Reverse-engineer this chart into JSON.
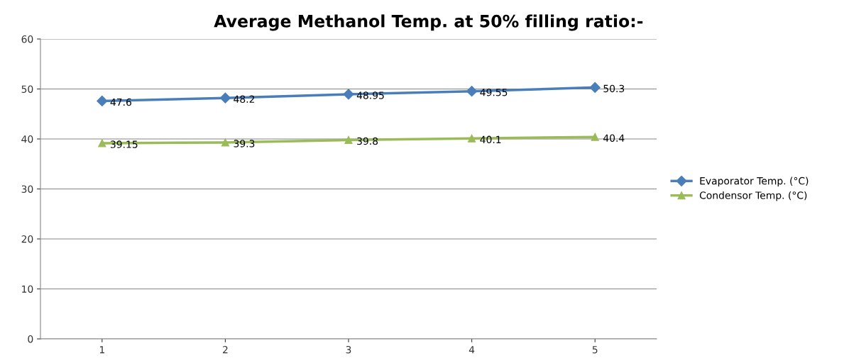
{
  "chart_data": {
    "type": "line",
    "title": "Average Methanol Temp. at 50% filling ratio:-",
    "categories": [
      "1",
      "2",
      "3",
      "4",
      "5"
    ],
    "series": [
      {
        "name": "Evaporator Temp. (°C)",
        "color": "#4a7ebb",
        "marker": "diamond",
        "values": [
          47.6,
          48.2,
          48.95,
          49.55,
          50.3
        ]
      },
      {
        "name": "Condensor Temp. (°C)",
        "color": "#9bbb59",
        "marker": "triangle",
        "values": [
          39.15,
          39.3,
          39.8,
          40.1,
          40.4
        ]
      }
    ],
    "ylim": [
      0,
      60
    ],
    "yticks": [
      0,
      10,
      20,
      30,
      40,
      50,
      60
    ],
    "grid": "y",
    "legend": "right",
    "data_labels": true
  }
}
